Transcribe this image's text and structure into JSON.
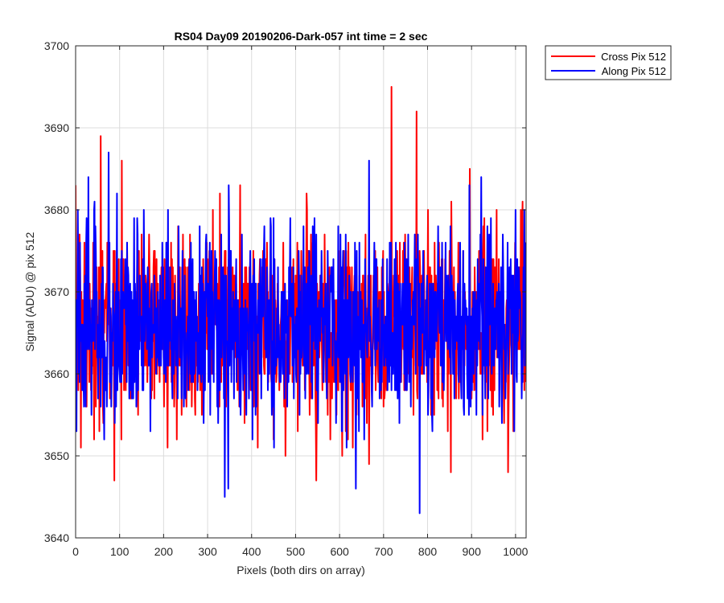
{
  "chart_data": {
    "type": "line",
    "title": "RS04 Day09 20190206-Dark-057 int time = 2 sec",
    "xlabel": "Pixels (both dirs on array)",
    "ylabel": "Signal (ADU) @ pix 512",
    "xlim": [
      0,
      1024
    ],
    "ylim": [
      3640,
      3700
    ],
    "xticks": [
      0,
      100,
      200,
      300,
      400,
      500,
      600,
      700,
      800,
      900,
      1000
    ],
    "yticks": [
      3640,
      3650,
      3660,
      3670,
      3680,
      3690,
      3700
    ],
    "xtick_labels": [
      "0",
      "100",
      "200",
      "300",
      "400",
      "500",
      "600",
      "700",
      "800",
      "900",
      "1000"
    ],
    "ytick_labels": [
      "3640",
      "3650",
      "3660",
      "3670",
      "3680",
      "3690",
      "3700"
    ],
    "grid": true,
    "legend_position": "outside-top-right",
    "series": [
      {
        "name": "Cross Pix 512",
        "color": "#ff0000",
        "points": 1024,
        "mean": 3666,
        "std": 6,
        "extremes": [
          {
            "x": 57,
            "y": 3689
          },
          {
            "x": 88,
            "y": 3647
          },
          {
            "x": 105,
            "y": 3686
          },
          {
            "x": 12,
            "y": 3651
          },
          {
            "x": 547,
            "y": 3647
          },
          {
            "x": 718,
            "y": 3695
          },
          {
            "x": 775,
            "y": 3692
          },
          {
            "x": 853,
            "y": 3648
          },
          {
            "x": 983,
            "y": 3648
          }
        ]
      },
      {
        "name": "Along Pix 512",
        "color": "#0000ff",
        "points": 1024,
        "mean": 3666,
        "std": 6,
        "extremes": [
          {
            "x": 29,
            "y": 3684
          },
          {
            "x": 75,
            "y": 3687
          },
          {
            "x": 339,
            "y": 3645
          },
          {
            "x": 347,
            "y": 3646
          },
          {
            "x": 637,
            "y": 3646
          },
          {
            "x": 667,
            "y": 3686
          },
          {
            "x": 782,
            "y": 3643
          },
          {
            "x": 922,
            "y": 3684
          }
        ]
      }
    ]
  }
}
